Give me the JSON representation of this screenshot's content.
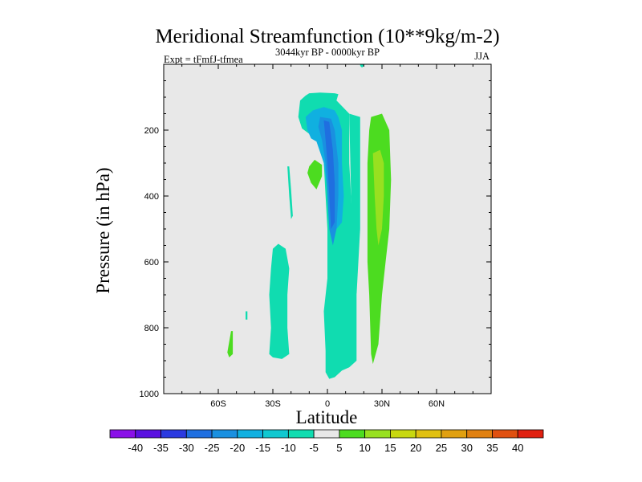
{
  "chart_data": {
    "type": "contour",
    "title": "Meridional Streamfunction (10**9kg/m-2)",
    "subtitle_left": "Expt = tFmfJ-tfmea",
    "subtitle_center": "3044kyr BP - 0000kyr BP",
    "subtitle_right": "JJA",
    "xlabel": "Latitude",
    "ylabel": "Pressure (in hPa)",
    "xlim": [
      -90,
      90
    ],
    "ylim": [
      1000,
      0
    ],
    "x_ticks": [
      {
        "value": -60,
        "label": "60S"
      },
      {
        "value": -30,
        "label": "30S"
      },
      {
        "value": 0,
        "label": "0"
      },
      {
        "value": 30,
        "label": "30N"
      },
      {
        "value": 60,
        "label": "60N"
      }
    ],
    "y_ticks": [
      {
        "value": 200,
        "label": "200"
      },
      {
        "value": 400,
        "label": "400"
      },
      {
        "value": 600,
        "label": "600"
      },
      {
        "value": 800,
        "label": "800"
      },
      {
        "value": 1000,
        "label": "1000"
      }
    ],
    "background_color": "#e8e8e8",
    "colorbar": {
      "labels": [
        "-40",
        "-35",
        "-30",
        "-25",
        "-20",
        "-15",
        "-10",
        "-5",
        "5",
        "10",
        "15",
        "20",
        "25",
        "30",
        "35",
        "40"
      ],
      "colors": [
        "#8a10e8",
        "#5a10e0",
        "#2b3ae0",
        "#1f6fe0",
        "#1a90e0",
        "#10b0e0",
        "#10c8d0",
        "#10dcb0",
        "#e8e8e8",
        "#4cdc20",
        "#98e020",
        "#c8d810",
        "#e0c010",
        "#e0a010",
        "#e08010",
        "#e05010",
        "#e02010"
      ]
    },
    "regions": [
      {
        "name": "cyan-center-column",
        "level": "-10 to -5",
        "color": "#10dcb0",
        "points": [
          [
            -10,
            88
          ],
          [
            -4,
            86
          ],
          [
            4,
            88
          ],
          [
            6,
            91
          ],
          [
            5,
            110
          ],
          [
            12,
            150
          ],
          [
            12,
            300
          ],
          [
            14,
            500
          ],
          [
            16,
            700
          ],
          [
            16,
            900
          ],
          [
            12,
            920
          ],
          [
            8,
            930
          ],
          [
            4,
            950
          ],
          [
            1,
            955
          ],
          [
            -1,
            935
          ],
          [
            -1,
            870
          ],
          [
            -2,
            750
          ],
          [
            0,
            650
          ],
          [
            0,
            500
          ],
          [
            -1,
            400
          ],
          [
            -2,
            300
          ],
          [
            -4,
            240
          ],
          [
            -6,
            225
          ],
          [
            -9,
            215
          ],
          [
            -14,
            195
          ],
          [
            -16,
            160
          ],
          [
            -15,
            110
          ],
          [
            -12,
            95
          ]
        ]
      },
      {
        "name": "blue-core",
        "level": "-20 to -15",
        "color": "#10b0e0",
        "points": [
          [
            -8,
            140
          ],
          [
            -2,
            130
          ],
          [
            4,
            140
          ],
          [
            6,
            160
          ],
          [
            8,
            200
          ],
          [
            8,
            300
          ],
          [
            9,
            400
          ],
          [
            8,
            480
          ],
          [
            5,
            500
          ],
          [
            3,
            450
          ],
          [
            0,
            380
          ],
          [
            -2,
            300
          ],
          [
            -6,
            235
          ],
          [
            -9,
            225
          ],
          [
            -11,
            200
          ],
          [
            -12,
            160
          ]
        ]
      },
      {
        "name": "blue-inner",
        "level": "-25 to -20",
        "color": "#1a90e0",
        "points": [
          [
            -4,
            160
          ],
          [
            2,
            165
          ],
          [
            4,
            200
          ],
          [
            6,
            300
          ],
          [
            6,
            400
          ],
          [
            5,
            500
          ],
          [
            3,
            550
          ],
          [
            1,
            500
          ],
          [
            0,
            400
          ],
          [
            -1,
            300
          ],
          [
            -3,
            230
          ],
          [
            -5,
            190
          ]
        ]
      },
      {
        "name": "blue-innermost",
        "level": "-30 to -25",
        "color": "#1f6fe0",
        "points": [
          [
            -2,
            170
          ],
          [
            1,
            175
          ],
          [
            3,
            260
          ],
          [
            4,
            360
          ],
          [
            4,
            480
          ],
          [
            2,
            500
          ],
          [
            1,
            400
          ],
          [
            0,
            300
          ],
          [
            -1,
            230
          ]
        ]
      },
      {
        "name": "cyan-sliver-upper-right",
        "level": "-10 to -5",
        "color": "#10dcb0",
        "points": [
          [
            18,
            -10
          ],
          [
            20,
            -10
          ],
          [
            20,
            5
          ],
          [
            19,
            10
          ],
          [
            18,
            5
          ]
        ]
      },
      {
        "name": "cyan-nh-edge",
        "level": "-10 to -5",
        "color": "#10dcb0",
        "points": [
          [
            12,
            150
          ],
          [
            18,
            160
          ],
          [
            18,
            300
          ],
          [
            18,
            500
          ],
          [
            16,
            700
          ],
          [
            14,
            600
          ],
          [
            13,
            400
          ]
        ]
      },
      {
        "name": "cyan-30s-column",
        "level": "-10 to -5",
        "color": "#10dcb0",
        "points": [
          [
            -30,
            560
          ],
          [
            -27,
            545
          ],
          [
            -23,
            560
          ],
          [
            -21,
            620
          ],
          [
            -22,
            700
          ],
          [
            -22,
            800
          ],
          [
            -21,
            880
          ],
          [
            -25,
            895
          ],
          [
            -30,
            890
          ],
          [
            -32,
            880
          ],
          [
            -31,
            800
          ],
          [
            -32,
            700
          ],
          [
            -31,
            620
          ]
        ]
      },
      {
        "name": "cyan-tiny-1",
        "level": "-10 to -5",
        "color": "#10dcb0",
        "points": [
          [
            -22,
            310
          ],
          [
            -21,
            310
          ],
          [
            -20,
            380
          ],
          [
            -19,
            460
          ],
          [
            -20,
            470
          ],
          [
            -21,
            400
          ]
        ]
      },
      {
        "name": "cyan-tiny-2",
        "level": "-10 to -5",
        "color": "#10dcb0",
        "points": [
          [
            -45,
            750
          ],
          [
            -44,
            750
          ],
          [
            -44,
            775
          ],
          [
            -45,
            775
          ]
        ]
      },
      {
        "name": "green-nh-column",
        "level": "5 to 10",
        "color": "#4cdc20",
        "points": [
          [
            24,
            160
          ],
          [
            30,
            150
          ],
          [
            34,
            200
          ],
          [
            35,
            350
          ],
          [
            34,
            500
          ],
          [
            32,
            600
          ],
          [
            30,
            700
          ],
          [
            28,
            850
          ],
          [
            25,
            910
          ],
          [
            24,
            880
          ],
          [
            23,
            700
          ],
          [
            22,
            600
          ],
          [
            22,
            450
          ],
          [
            22,
            300
          ],
          [
            23,
            200
          ]
        ]
      },
      {
        "name": "lightgreen-nh-core",
        "level": "10 to 15",
        "color": "#98e020",
        "points": [
          [
            25,
            270
          ],
          [
            29,
            260
          ],
          [
            31,
            300
          ],
          [
            31,
            400
          ],
          [
            30,
            500
          ],
          [
            28,
            550
          ],
          [
            27,
            500
          ],
          [
            26,
            400
          ]
        ]
      },
      {
        "name": "green-blob-west",
        "level": "5 to 10",
        "color": "#4cdc20",
        "points": [
          [
            -10,
            310
          ],
          [
            -7,
            290
          ],
          [
            -3,
            305
          ],
          [
            -3,
            340
          ],
          [
            -6,
            380
          ],
          [
            -9,
            360
          ],
          [
            -11,
            330
          ]
        ]
      },
      {
        "name": "green-sliver-sh",
        "level": "5 to 10",
        "color": "#4cdc20",
        "points": [
          [
            -53,
            810
          ],
          [
            -52,
            810
          ],
          [
            -52,
            880
          ],
          [
            -54,
            890
          ],
          [
            -55,
            875
          ]
        ]
      }
    ]
  }
}
